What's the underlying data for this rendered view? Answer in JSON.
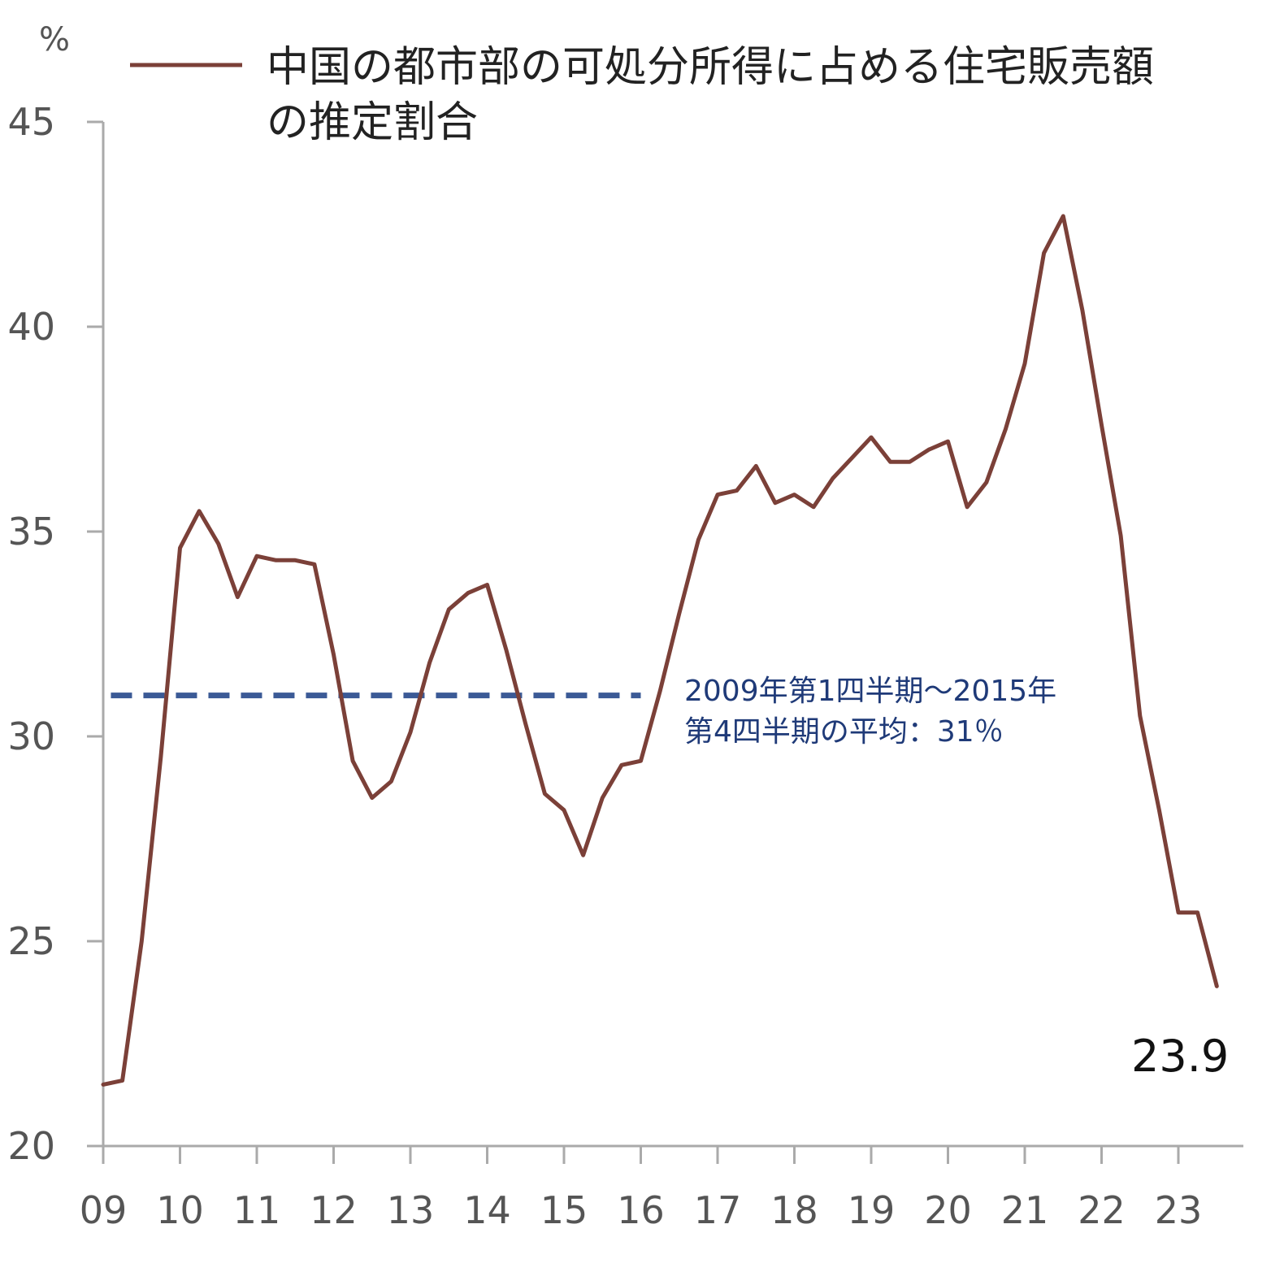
{
  "chart_data": {
    "type": "line",
    "unit_label": "%",
    "legend": {
      "line1": "中国の都市部の可処分所得に占める住宅販売額",
      "line2": "の推定割合"
    },
    "ylim": [
      20,
      45
    ],
    "yticks": [
      "20",
      "25",
      "30",
      "35",
      "40",
      "45"
    ],
    "xticks": [
      "09",
      "10",
      "11",
      "12",
      "13",
      "14",
      "15",
      "16",
      "17",
      "18",
      "19",
      "20",
      "21",
      "22",
      "23"
    ],
    "x_start_year": 2009,
    "colors": {
      "series": "#7b4038",
      "average": "#3b5a96",
      "axis": "#aaaaaa"
    },
    "series": [
      {
        "name": "中国の都市部の可処分所得に占める住宅販売額の推定割合",
        "x": [
          2009.0,
          2009.25,
          2009.5,
          2009.75,
          2010.0,
          2010.25,
          2010.5,
          2010.75,
          2011.0,
          2011.25,
          2011.5,
          2011.75,
          2012.0,
          2012.25,
          2012.5,
          2012.75,
          2013.0,
          2013.25,
          2013.5,
          2013.75,
          2014.0,
          2014.25,
          2014.5,
          2014.75,
          2015.0,
          2015.25,
          2015.5,
          2015.75,
          2016.0,
          2016.25,
          2016.5,
          2016.75,
          2017.0,
          2017.25,
          2017.5,
          2017.75,
          2018.0,
          2018.25,
          2018.5,
          2018.75,
          2019.0,
          2019.25,
          2019.5,
          2019.75,
          2020.0,
          2020.25,
          2020.5,
          2020.75,
          2021.0,
          2021.25,
          2021.5,
          2021.75,
          2022.0,
          2022.25,
          2022.5,
          2022.75,
          2023.0,
          2023.25,
          2023.5
        ],
        "y": [
          21.5,
          21.6,
          25.0,
          29.5,
          34.6,
          35.5,
          34.7,
          33.4,
          34.4,
          34.3,
          34.3,
          34.2,
          32.0,
          29.4,
          28.5,
          28.9,
          30.1,
          31.8,
          33.1,
          33.5,
          33.7,
          32.1,
          30.3,
          28.6,
          28.2,
          27.1,
          28.5,
          29.3,
          29.4,
          31.1,
          33.0,
          34.8,
          35.9,
          36.0,
          36.6,
          35.7,
          35.9,
          35.6,
          36.3,
          36.8,
          37.3,
          36.7,
          36.7,
          37.0,
          37.2,
          35.6,
          36.2,
          37.5,
          39.1,
          41.8,
          42.7,
          40.4,
          37.6,
          34.9,
          30.5,
          28.2,
          25.7,
          25.7,
          23.9
        ]
      }
    ],
    "average": {
      "value": 31,
      "x_from": 2009.1,
      "x_to": 2016.0,
      "label_line1": "2009年第1四半期～2015年",
      "label_line2": "第4四半期の平均：31％"
    },
    "last_value_label": "23.9"
  }
}
